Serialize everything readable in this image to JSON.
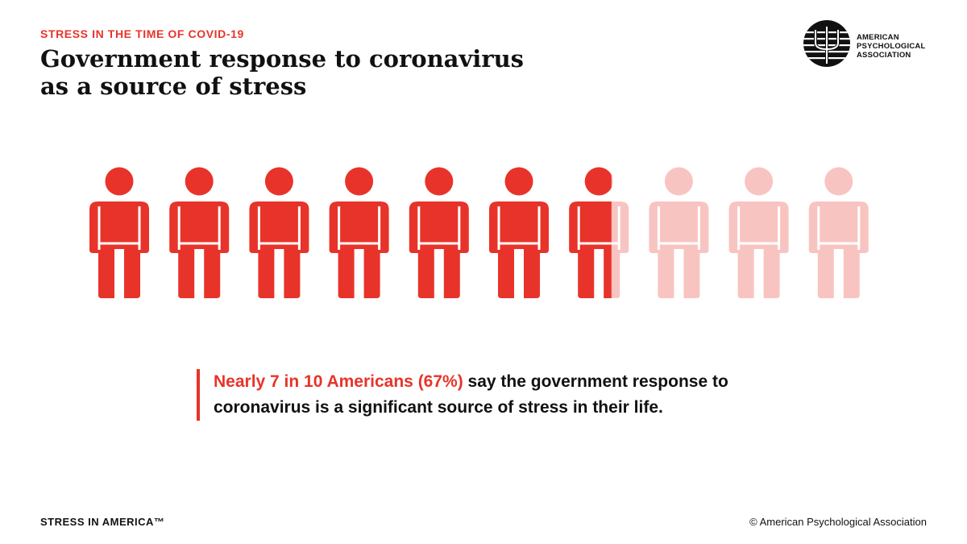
{
  "header": {
    "kicker": "STRESS IN THE TIME OF COVID-19",
    "title_lines": [
      "Government response to coronavirus",
      "as a source of stress"
    ]
  },
  "logo": {
    "lines": [
      "AMERICAN",
      "PSYCHOLOGICAL",
      "ASSOCIATION"
    ]
  },
  "chart_data": {
    "type": "pictograph",
    "total_icons": 10,
    "value_percent": 67,
    "filled_color": "#e8332a",
    "empty_color": "#f8c4c1"
  },
  "callout": {
    "highlight": "Nearly 7 in 10 Americans (67%)",
    "rest": " say the government response to coronavirus is a significant source of stress in their life."
  },
  "footer": {
    "left": "STRESS IN AMERICA™",
    "right": "© American Psychological Association"
  }
}
